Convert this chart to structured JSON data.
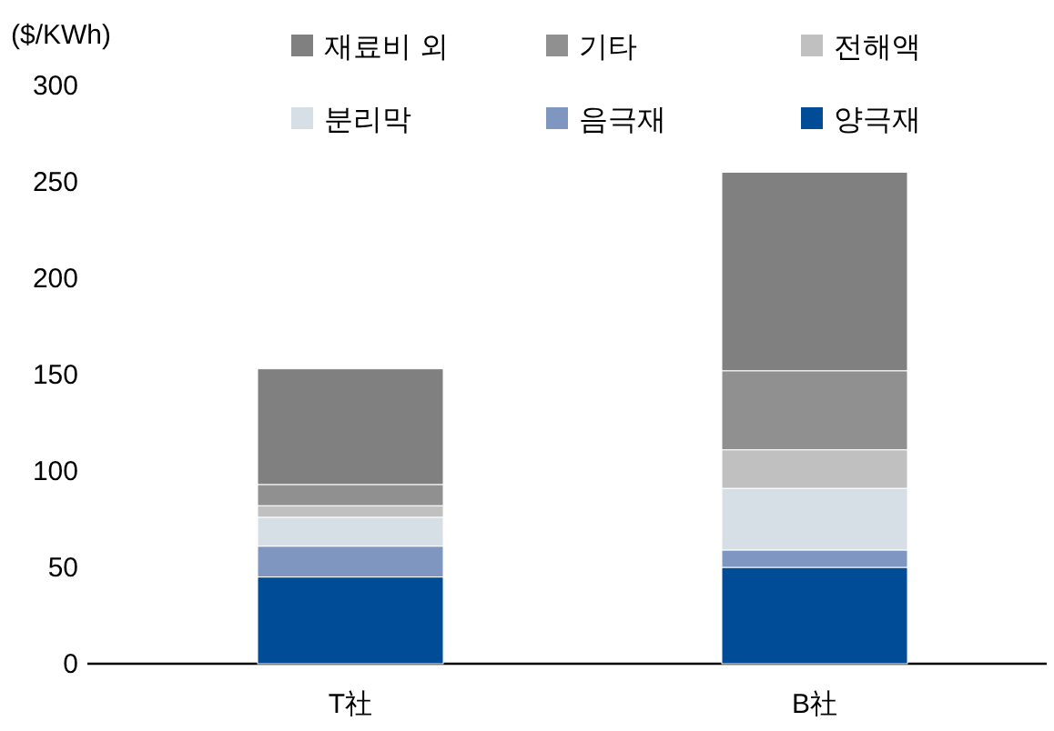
{
  "chart_data": {
    "type": "bar",
    "stacked": true,
    "ylabel": "($/KWh)",
    "categories": [
      "T社",
      "B社"
    ],
    "series": [
      {
        "name": "양극재",
        "color": "#004c97",
        "values": [
          45,
          50
        ]
      },
      {
        "name": "음극재",
        "color": "#7f96c0",
        "values": [
          16,
          9
        ]
      },
      {
        "name": "분리막",
        "color": "#d6dee6",
        "values": [
          15,
          32
        ]
      },
      {
        "name": "전해액",
        "color": "#c0c0c0",
        "values": [
          6,
          20
        ]
      },
      {
        "name": "기타",
        "color": "#909090",
        "values": [
          11,
          41
        ]
      },
      {
        "name": "재료비 외",
        "color": "#808080",
        "values": [
          60,
          103
        ]
      }
    ],
    "ylim": [
      0,
      300
    ],
    "yticks": [
      0,
      50,
      100,
      150,
      200,
      250,
      300
    ],
    "legend": "top",
    "grid": false
  }
}
